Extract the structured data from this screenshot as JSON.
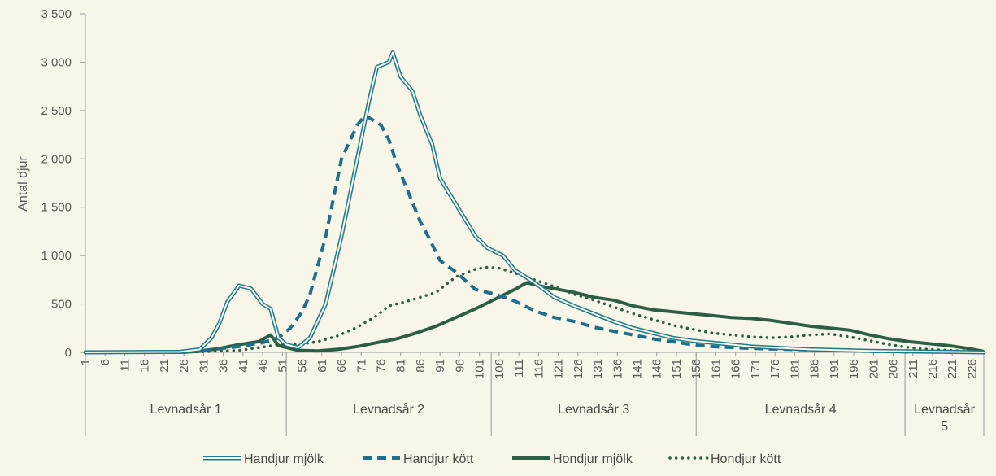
{
  "chart_data": {
    "type": "line",
    "ylabel": "Antal djur",
    "ylim": [
      0,
      3500
    ],
    "yticks": [
      0,
      500,
      1000,
      1500,
      2000,
      2500,
      3000,
      3500
    ],
    "ytick_labels": [
      "0",
      "500",
      "1 000",
      "1 500",
      "2 000",
      "2 500",
      "3 000",
      "3 500"
    ],
    "xlim": [
      1,
      229
    ],
    "xticks": [
      1,
      6,
      11,
      16,
      21,
      26,
      31,
      36,
      41,
      46,
      51,
      56,
      61,
      66,
      71,
      76,
      81,
      86,
      91,
      96,
      101,
      106,
      111,
      116,
      121,
      126,
      131,
      136,
      141,
      146,
      151,
      156,
      161,
      166,
      171,
      176,
      181,
      186,
      191,
      196,
      201,
      206,
      211,
      216,
      221,
      226
    ],
    "groups": [
      {
        "label": "Levnadsår 1",
        "start": 1,
        "end": 52
      },
      {
        "label": "Levnadsår 2",
        "start": 52,
        "end": 104
      },
      {
        "label": "Levnadsår 3",
        "start": 104,
        "end": 156
      },
      {
        "label": "Levnadsår 4",
        "start": 156,
        "end": 209
      },
      {
        "label": "Levnadsår 5",
        "start": 209,
        "end": 229
      }
    ],
    "grid": false,
    "legend_position": "bottom",
    "series": [
      {
        "name": "Handjur mjölk",
        "style": "double",
        "color": "#1f7a8c",
        "points": [
          [
            1,
            0
          ],
          [
            25,
            5
          ],
          [
            30,
            30
          ],
          [
            33,
            150
          ],
          [
            35,
            300
          ],
          [
            37,
            520
          ],
          [
            40,
            690
          ],
          [
            43,
            660
          ],
          [
            46,
            500
          ],
          [
            48,
            450
          ],
          [
            50,
            150
          ],
          [
            52,
            80
          ],
          [
            55,
            50
          ],
          [
            58,
            150
          ],
          [
            62,
            500
          ],
          [
            66,
            1200
          ],
          [
            70,
            2000
          ],
          [
            73,
            2600
          ],
          [
            75,
            2950
          ],
          [
            78,
            3000
          ],
          [
            79,
            3100
          ],
          [
            81,
            2850
          ],
          [
            84,
            2700
          ],
          [
            86,
            2450
          ],
          [
            89,
            2150
          ],
          [
            91,
            1800
          ],
          [
            94,
            1600
          ],
          [
            97,
            1400
          ],
          [
            100,
            1200
          ],
          [
            103,
            1080
          ],
          [
            107,
            1000
          ],
          [
            110,
            850
          ],
          [
            115,
            720
          ],
          [
            120,
            570
          ],
          [
            125,
            480
          ],
          [
            130,
            400
          ],
          [
            135,
            320
          ],
          [
            140,
            250
          ],
          [
            145,
            200
          ],
          [
            150,
            150
          ],
          [
            155,
            120
          ],
          [
            160,
            100
          ],
          [
            165,
            80
          ],
          [
            170,
            60
          ],
          [
            175,
            50
          ],
          [
            180,
            40
          ],
          [
            185,
            30
          ],
          [
            190,
            25
          ],
          [
            195,
            20
          ],
          [
            200,
            15
          ],
          [
            210,
            10
          ],
          [
            220,
            5
          ],
          [
            229,
            0
          ]
        ]
      },
      {
        "name": "Handjur kött",
        "style": "dashed",
        "color": "#1f6e8c",
        "points": [
          [
            1,
            0
          ],
          [
            25,
            5
          ],
          [
            30,
            15
          ],
          [
            40,
            60
          ],
          [
            46,
            100
          ],
          [
            50,
            150
          ],
          [
            53,
            250
          ],
          [
            56,
            420
          ],
          [
            58,
            600
          ],
          [
            62,
            1200
          ],
          [
            66,
            2000
          ],
          [
            70,
            2350
          ],
          [
            72,
            2450
          ],
          [
            74,
            2400
          ],
          [
            76,
            2350
          ],
          [
            78,
            2200
          ],
          [
            80,
            1950
          ],
          [
            83,
            1650
          ],
          [
            86,
            1350
          ],
          [
            88,
            1200
          ],
          [
            91,
            950
          ],
          [
            95,
            830
          ],
          [
            100,
            650
          ],
          [
            105,
            600
          ],
          [
            110,
            530
          ],
          [
            115,
            430
          ],
          [
            120,
            360
          ],
          [
            125,
            320
          ],
          [
            130,
            260
          ],
          [
            135,
            220
          ],
          [
            140,
            180
          ],
          [
            145,
            140
          ],
          [
            150,
            110
          ],
          [
            155,
            80
          ],
          [
            160,
            60
          ],
          [
            170,
            40
          ],
          [
            180,
            30
          ],
          [
            190,
            20
          ],
          [
            200,
            10
          ],
          [
            210,
            5
          ],
          [
            229,
            0
          ]
        ]
      },
      {
        "name": "Hondjur mjölk",
        "style": "solid",
        "color": "#2c5e44",
        "points": [
          [
            1,
            0
          ],
          [
            25,
            0
          ],
          [
            30,
            10
          ],
          [
            35,
            40
          ],
          [
            40,
            80
          ],
          [
            45,
            110
          ],
          [
            48,
            180
          ],
          [
            50,
            70
          ],
          [
            55,
            20
          ],
          [
            60,
            15
          ],
          [
            65,
            30
          ],
          [
            70,
            60
          ],
          [
            75,
            100
          ],
          [
            80,
            140
          ],
          [
            85,
            200
          ],
          [
            90,
            270
          ],
          [
            95,
            360
          ],
          [
            100,
            450
          ],
          [
            105,
            550
          ],
          [
            110,
            650
          ],
          [
            113,
            720
          ],
          [
            117,
            680
          ],
          [
            121,
            650
          ],
          [
            125,
            620
          ],
          [
            130,
            570
          ],
          [
            135,
            540
          ],
          [
            140,
            480
          ],
          [
            145,
            440
          ],
          [
            150,
            420
          ],
          [
            155,
            400
          ],
          [
            160,
            380
          ],
          [
            165,
            360
          ],
          [
            170,
            350
          ],
          [
            175,
            330
          ],
          [
            180,
            300
          ],
          [
            185,
            270
          ],
          [
            190,
            250
          ],
          [
            195,
            230
          ],
          [
            200,
            180
          ],
          [
            205,
            140
          ],
          [
            210,
            110
          ],
          [
            215,
            90
          ],
          [
            220,
            70
          ],
          [
            225,
            40
          ],
          [
            229,
            10
          ]
        ]
      },
      {
        "name": "Hondjur kött",
        "style": "dotted",
        "color": "#2c5e44",
        "points": [
          [
            1,
            0
          ],
          [
            30,
            5
          ],
          [
            40,
            20
          ],
          [
            47,
            60
          ],
          [
            50,
            80
          ],
          [
            55,
            80
          ],
          [
            60,
            110
          ],
          [
            65,
            170
          ],
          [
            70,
            260
          ],
          [
            75,
            380
          ],
          [
            78,
            480
          ],
          [
            82,
            520
          ],
          [
            86,
            570
          ],
          [
            90,
            620
          ],
          [
            95,
            780
          ],
          [
            100,
            860
          ],
          [
            103,
            880
          ],
          [
            106,
            870
          ],
          [
            110,
            820
          ],
          [
            115,
            750
          ],
          [
            120,
            680
          ],
          [
            125,
            600
          ],
          [
            130,
            540
          ],
          [
            135,
            470
          ],
          [
            140,
            400
          ],
          [
            145,
            340
          ],
          [
            150,
            280
          ],
          [
            155,
            240
          ],
          [
            160,
            200
          ],
          [
            165,
            180
          ],
          [
            170,
            160
          ],
          [
            175,
            150
          ],
          [
            180,
            160
          ],
          [
            185,
            180
          ],
          [
            190,
            190
          ],
          [
            195,
            160
          ],
          [
            200,
            120
          ],
          [
            205,
            80
          ],
          [
            210,
            50
          ],
          [
            215,
            30
          ],
          [
            220,
            20
          ],
          [
            229,
            5
          ]
        ]
      }
    ]
  }
}
